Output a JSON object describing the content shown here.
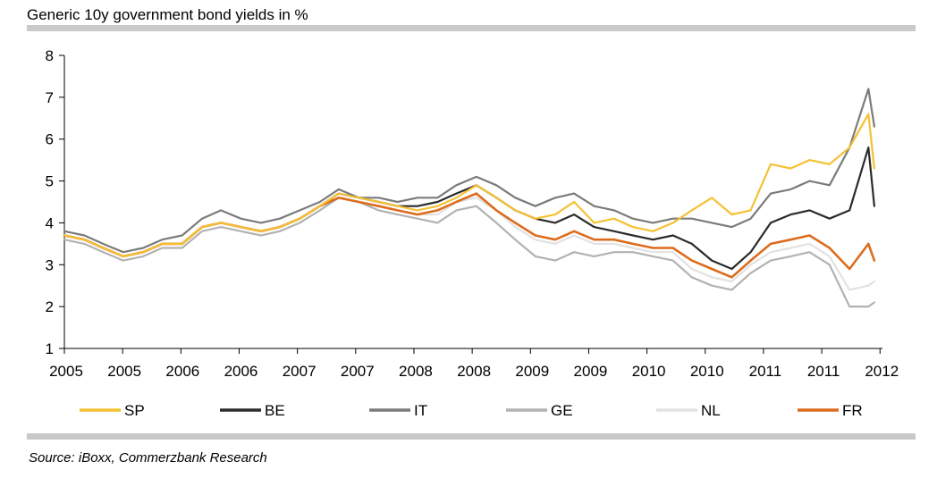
{
  "chart_data": {
    "type": "line",
    "title": "Generic 10y government bond yields in %",
    "xlabel": "",
    "ylabel": "",
    "x": [
      2005.0,
      2005.17,
      2005.33,
      2005.5,
      2005.67,
      2005.83,
      2006.0,
      2006.17,
      2006.33,
      2006.5,
      2006.67,
      2006.83,
      2007.0,
      2007.17,
      2007.33,
      2007.5,
      2007.67,
      2007.83,
      2008.0,
      2008.17,
      2008.33,
      2008.5,
      2008.67,
      2008.83,
      2009.0,
      2009.17,
      2009.33,
      2009.5,
      2009.67,
      2009.83,
      2010.0,
      2010.17,
      2010.33,
      2010.5,
      2010.67,
      2010.83,
      2011.0,
      2011.17,
      2011.33,
      2011.5,
      2011.67,
      2011.83,
      2011.88
    ],
    "ylim": [
      1,
      8
    ],
    "yticks": [
      "1",
      "2",
      "3",
      "4",
      "5",
      "6",
      "7",
      "8"
    ],
    "xticks": [
      "2005",
      "2005",
      "2006",
      "2006",
      "2007",
      "2007",
      "2008",
      "2008",
      "2009",
      "2009",
      "2010",
      "2010",
      "2011",
      "2011",
      "2012"
    ],
    "series": [
      {
        "name": "SP",
        "color": "#f5c133",
        "width": 2.2,
        "values": [
          3.7,
          3.6,
          3.4,
          3.2,
          3.3,
          3.5,
          3.5,
          3.9,
          4.0,
          3.9,
          3.8,
          3.9,
          4.1,
          4.4,
          4.7,
          4.6,
          4.5,
          4.4,
          4.3,
          4.4,
          4.6,
          4.9,
          4.6,
          4.3,
          4.1,
          4.2,
          4.5,
          4.0,
          4.1,
          3.9,
          3.8,
          4.0,
          4.3,
          4.6,
          4.2,
          4.3,
          5.4,
          5.3,
          5.5,
          5.4,
          5.8,
          6.6,
          5.3
        ]
      },
      {
        "name": "BE",
        "color": "#2b2b2b",
        "width": 2.2,
        "values": [
          3.7,
          3.6,
          3.4,
          3.2,
          3.3,
          3.5,
          3.5,
          3.9,
          4.0,
          3.9,
          3.8,
          3.9,
          4.1,
          4.4,
          4.7,
          4.6,
          4.5,
          4.4,
          4.4,
          4.5,
          4.7,
          4.9,
          4.6,
          4.3,
          4.1,
          4.0,
          4.2,
          3.9,
          3.8,
          3.7,
          3.6,
          3.7,
          3.5,
          3.1,
          2.9,
          3.3,
          4.0,
          4.2,
          4.3,
          4.1,
          4.3,
          5.8,
          4.4
        ]
      },
      {
        "name": "IT",
        "color": "#7b7b7b",
        "width": 2.2,
        "values": [
          3.8,
          3.7,
          3.5,
          3.3,
          3.4,
          3.6,
          3.7,
          4.1,
          4.3,
          4.1,
          4.0,
          4.1,
          4.3,
          4.5,
          4.8,
          4.6,
          4.6,
          4.5,
          4.6,
          4.6,
          4.9,
          5.1,
          4.9,
          4.6,
          4.4,
          4.6,
          4.7,
          4.4,
          4.3,
          4.1,
          4.0,
          4.1,
          4.1,
          4.0,
          3.9,
          4.1,
          4.7,
          4.8,
          5.0,
          4.9,
          5.8,
          7.2,
          6.3
        ]
      },
      {
        "name": "GE",
        "color": "#b2b2b2",
        "width": 2.2,
        "values": [
          3.6,
          3.5,
          3.3,
          3.1,
          3.2,
          3.4,
          3.4,
          3.8,
          3.9,
          3.8,
          3.7,
          3.8,
          4.0,
          4.3,
          4.6,
          4.5,
          4.3,
          4.2,
          4.1,
          4.0,
          4.3,
          4.4,
          4.0,
          3.6,
          3.2,
          3.1,
          3.3,
          3.2,
          3.3,
          3.3,
          3.2,
          3.1,
          2.7,
          2.5,
          2.4,
          2.8,
          3.1,
          3.2,
          3.3,
          3.0,
          2.0,
          2.0,
          2.1
        ]
      },
      {
        "name": "NL",
        "color": "#e2e2e2",
        "width": 2.2,
        "values": [
          3.7,
          3.6,
          3.4,
          3.2,
          3.3,
          3.5,
          3.5,
          3.9,
          4.0,
          3.9,
          3.8,
          3.9,
          4.1,
          4.4,
          4.6,
          4.5,
          4.4,
          4.3,
          4.2,
          4.2,
          4.5,
          4.6,
          4.3,
          3.9,
          3.6,
          3.5,
          3.7,
          3.5,
          3.5,
          3.4,
          3.3,
          3.3,
          2.9,
          2.7,
          2.6,
          3.0,
          3.3,
          3.4,
          3.5,
          3.2,
          2.4,
          2.5,
          2.6
        ]
      },
      {
        "name": "FR",
        "color": "#dc6c1e",
        "width": 2.6,
        "values": [
          3.7,
          3.6,
          3.4,
          3.2,
          3.3,
          3.5,
          3.5,
          3.9,
          4.0,
          3.9,
          3.8,
          3.9,
          4.1,
          4.4,
          4.6,
          4.5,
          4.4,
          4.3,
          4.2,
          4.3,
          4.5,
          4.7,
          4.3,
          4.0,
          3.7,
          3.6,
          3.8,
          3.6,
          3.6,
          3.5,
          3.4,
          3.4,
          3.1,
          2.9,
          2.7,
          3.1,
          3.5,
          3.6,
          3.7,
          3.4,
          2.9,
          3.5,
          3.1
        ]
      }
    ],
    "legend": "bottom",
    "source": "Source: iBoxx, Commerzbank Research"
  }
}
